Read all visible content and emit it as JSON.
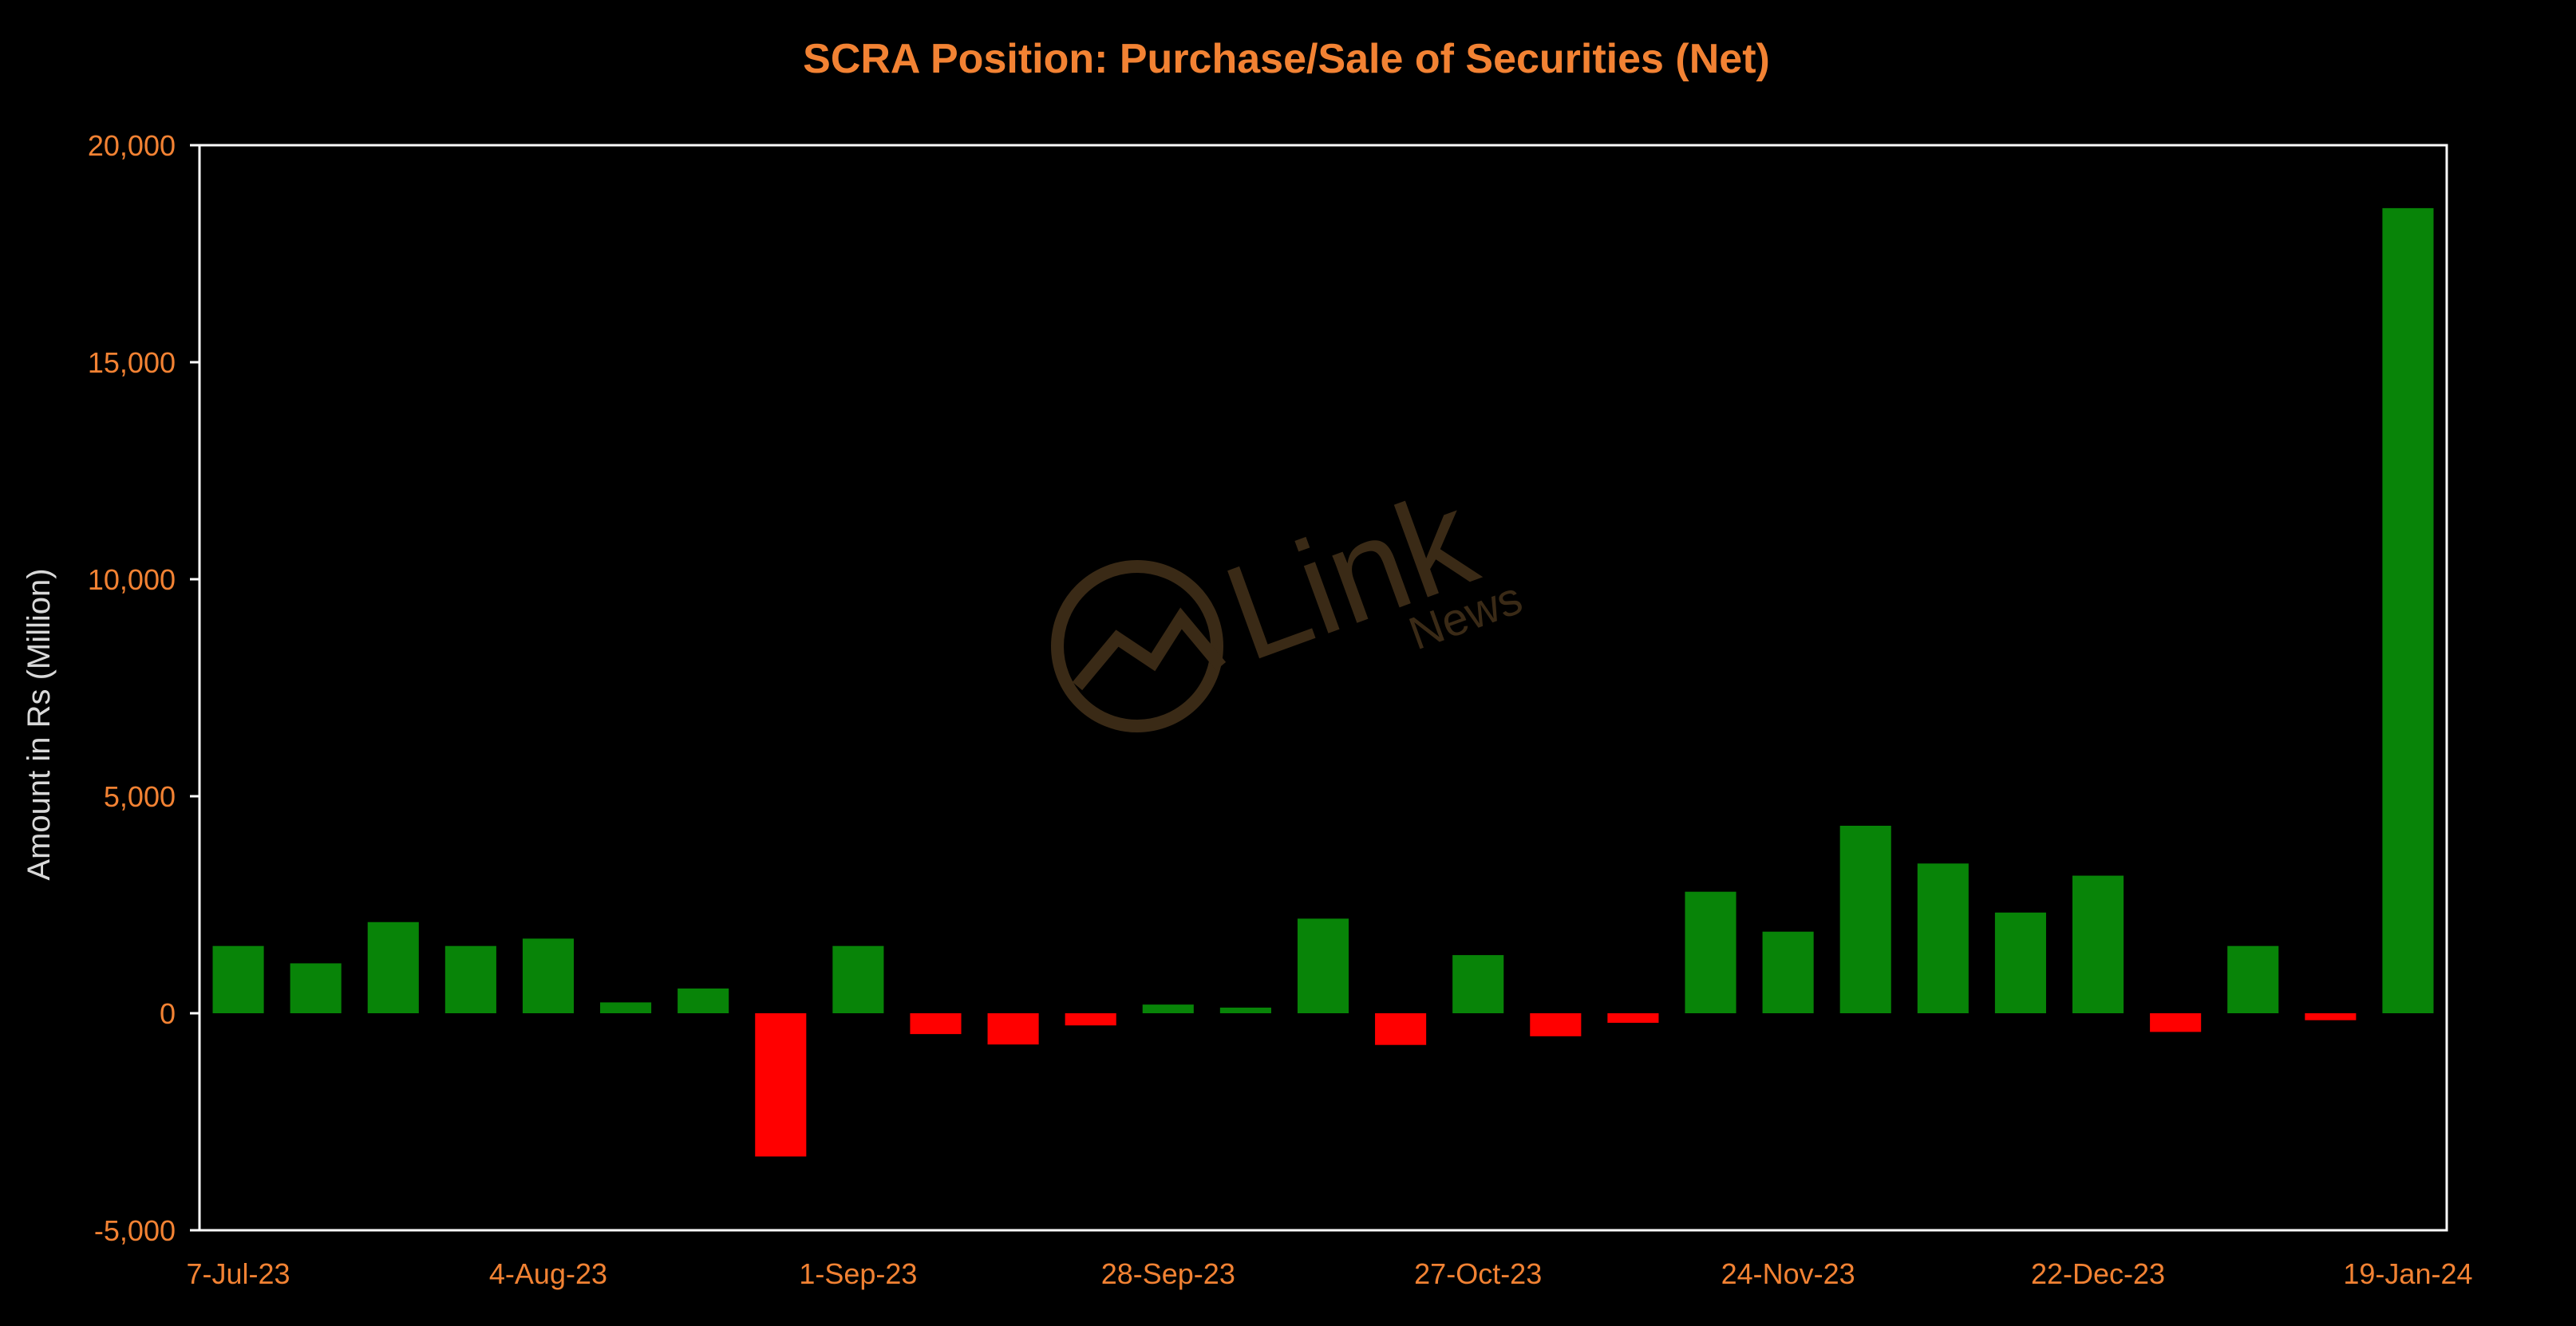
{
  "chart_data": {
    "type": "bar",
    "title": "SCRA Position: Purchase/Sale of Securities (Net)",
    "xlabel": "",
    "ylabel": "Amount in Rs (Million)",
    "ylim": [
      -5000,
      20000
    ],
    "yticks": [
      -5000,
      0,
      5000,
      10000,
      15000,
      20000
    ],
    "ytick_labels": [
      "-5,000",
      "0",
      "5,000",
      "10,000",
      "15,000",
      "20,000"
    ],
    "xtick_labels": [
      {
        "index": 0,
        "label": "7-Jul-23"
      },
      {
        "index": 4,
        "label": "4-Aug-23"
      },
      {
        "index": 8,
        "label": "1-Sep-23"
      },
      {
        "index": 12,
        "label": "28-Sep-23"
      },
      {
        "index": 16,
        "label": "27-Oct-23"
      },
      {
        "index": 20,
        "label": "24-Nov-23"
      },
      {
        "index": 24,
        "label": "22-Dec-23"
      },
      {
        "index": 28,
        "label": "19-Jan-24"
      }
    ],
    "values": [
      1550,
      1150,
      2100,
      1550,
      1720,
      250,
      570,
      -3300,
      1550,
      -480,
      -720,
      -280,
      200,
      130,
      2180,
      -730,
      1340,
      -530,
      -220,
      2800,
      1880,
      4320,
      3450,
      2320,
      3170,
      -430,
      1550,
      -160,
      18550
    ],
    "grid": false,
    "legend": "none",
    "colors": {
      "positive": "#088408",
      "negative": "#ff0000",
      "background": "#000000",
      "text": "#f28233",
      "axis_label": "#d9d9d9",
      "frame": "#ffffff"
    }
  },
  "watermark": {
    "brand": "Link",
    "sub": "News"
  }
}
